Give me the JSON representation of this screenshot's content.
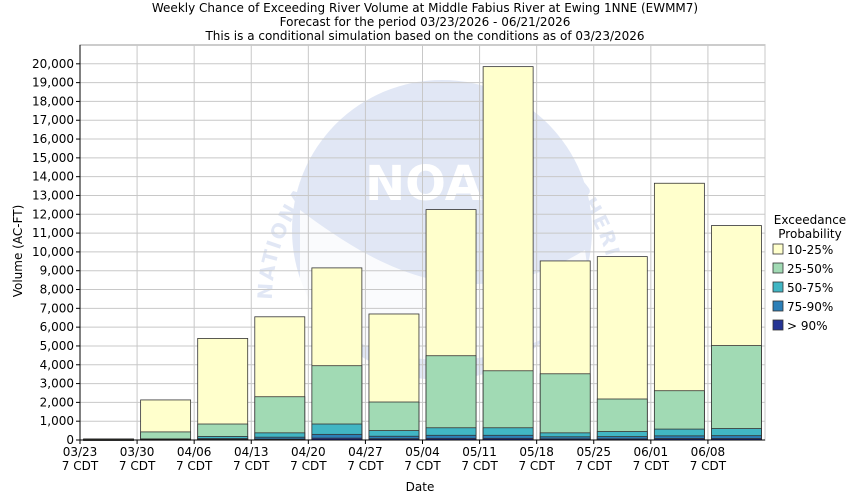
{
  "header": {
    "title_line1": "Weekly Chance of Exceeding River Volume at Middle Fabius River at Ewing 1NNE (EWMM7)",
    "title_line2": "Forecast for the period 03/23/2026 - 06/21/2026",
    "title_line3": "This is a conditional simulation based on the conditions as of 03/23/2026"
  },
  "watermark": {
    "text": "NATIONAL OCEANIC AND ATMOSPHERIC ADMINISTRATION",
    "logo": "NOAA"
  },
  "colors": {
    "p10_25": "#ffffcc",
    "p25_50": "#a1dab4",
    "p50_75": "#41b6c4",
    "p75_90": "#2c7fb8",
    "p90": "#253494",
    "grid": "#c8c8c8"
  },
  "chart_data": {
    "type": "bar",
    "stacked": true,
    "xlabel": "Date",
    "ylabel": "Volume (AC-FT)",
    "ylim": [
      0,
      21000
    ],
    "yticks": [
      0,
      1000,
      2000,
      3000,
      4000,
      5000,
      6000,
      7000,
      8000,
      9000,
      10000,
      11000,
      12000,
      13000,
      14000,
      15000,
      16000,
      17000,
      18000,
      19000,
      20000
    ],
    "ytick_labels": [
      "0",
      "1,000",
      "2,000",
      "3,000",
      "4,000",
      "5,000",
      "6,000",
      "7,000",
      "8,000",
      "9,000",
      "10,000",
      "11,000",
      "12,000",
      "13,000",
      "14,000",
      "15,000",
      "16,000",
      "17,000",
      "18,000",
      "19,000",
      "20,000"
    ],
    "grid": true,
    "tick_labels": [
      {
        "date": "03/23",
        "tz": "7 CDT"
      },
      {
        "date": "03/30",
        "tz": "7 CDT"
      },
      {
        "date": "04/06",
        "tz": "7 CDT"
      },
      {
        "date": "04/13",
        "tz": "7 CDT"
      },
      {
        "date": "04/20",
        "tz": "7 CDT"
      },
      {
        "date": "04/27",
        "tz": "7 CDT"
      },
      {
        "date": "05/04",
        "tz": "7 CDT"
      },
      {
        "date": "05/11",
        "tz": "7 CDT"
      },
      {
        "date": "05/18",
        "tz": "7 CDT"
      },
      {
        "date": "05/25",
        "tz": "7 CDT"
      },
      {
        "date": "06/01",
        "tz": "7 CDT"
      },
      {
        "date": "06/08",
        "tz": "7 CDT"
      }
    ],
    "weeks": [
      {
        "start": "03/23",
        "p10_25": 60,
        "p25_50": 20,
        "p50_75": 15,
        "p75_90": 10,
        "p90": 5
      },
      {
        "start": "03/30",
        "p10_25": 2130,
        "p25_50": 430,
        "p50_75": 60,
        "p75_90": 35,
        "p90": 15
      },
      {
        "start": "04/06",
        "p10_25": 5400,
        "p25_50": 850,
        "p50_75": 190,
        "p75_90": 80,
        "p90": 30
      },
      {
        "start": "04/13",
        "p10_25": 6550,
        "p25_50": 2300,
        "p50_75": 380,
        "p75_90": 150,
        "p90": 50
      },
      {
        "start": "04/20",
        "p10_25": 9150,
        "p25_50": 3950,
        "p50_75": 850,
        "p75_90": 300,
        "p90": 100
      },
      {
        "start": "04/27",
        "p10_25": 6700,
        "p25_50": 2020,
        "p50_75": 500,
        "p75_90": 200,
        "p90": 70
      },
      {
        "start": "05/04",
        "p10_25": 12250,
        "p25_50": 4480,
        "p50_75": 650,
        "p75_90": 250,
        "p90": 90
      },
      {
        "start": "05/11",
        "p10_25": 19850,
        "p25_50": 3680,
        "p50_75": 650,
        "p75_90": 250,
        "p90": 90
      },
      {
        "start": "05/18",
        "p10_25": 9520,
        "p25_50": 3520,
        "p50_75": 380,
        "p75_90": 170,
        "p90": 60
      },
      {
        "start": "05/25",
        "p10_25": 9750,
        "p25_50": 2180,
        "p50_75": 450,
        "p75_90": 180,
        "p90": 60
      },
      {
        "start": "06/01",
        "p10_25": 13650,
        "p25_50": 2620,
        "p50_75": 580,
        "p75_90": 220,
        "p90": 80
      },
      {
        "start": "06/08",
        "p10_25": 11400,
        "p25_50": 5020,
        "p50_75": 610,
        "p75_90": 230,
        "p90": 80
      }
    ],
    "legend": {
      "placement": "right",
      "title_line1": "Exceedance",
      "title_line2": "Probability",
      "entries": [
        {
          "key": "p10_25",
          "label": "10-25%"
        },
        {
          "key": "p25_50",
          "label": "25-50%"
        },
        {
          "key": "p50_75",
          "label": "50-75%"
        },
        {
          "key": "p75_90",
          "label": "75-90%"
        },
        {
          "key": "p90",
          "label": "> 90%"
        }
      ]
    }
  }
}
